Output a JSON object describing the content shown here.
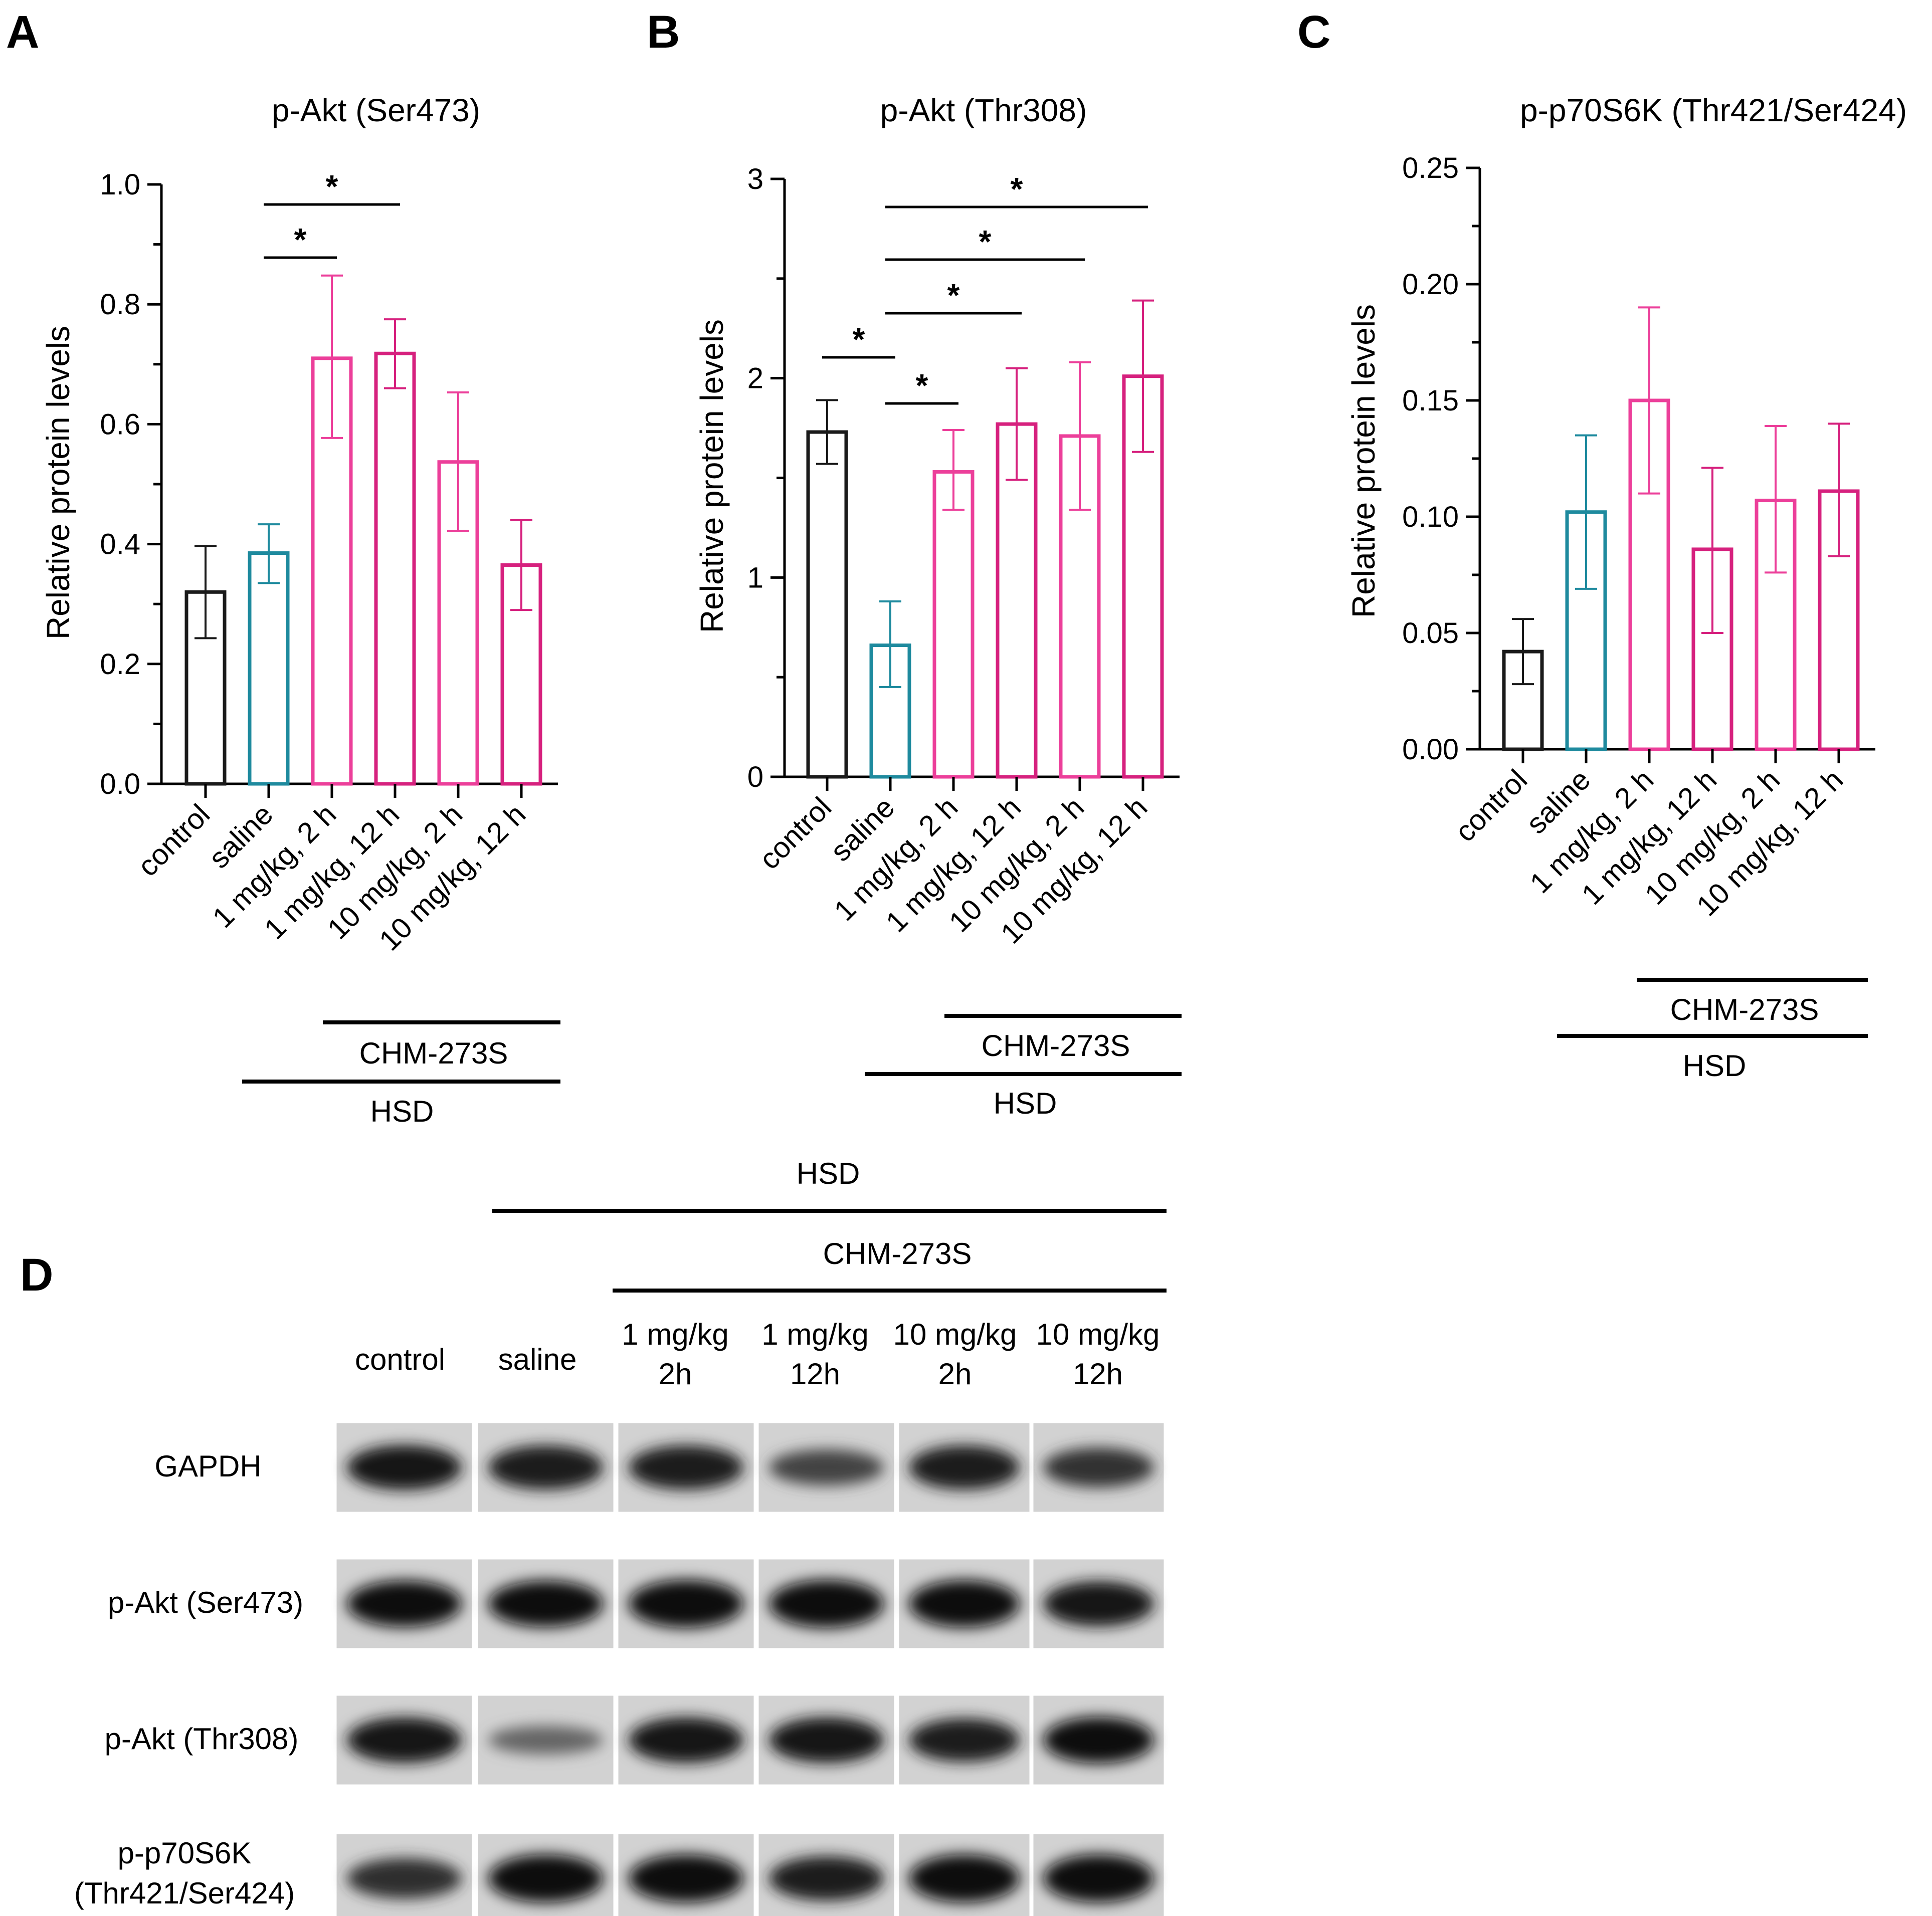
{
  "panels": [
    "A",
    "B",
    "C",
    "D"
  ],
  "colors": {
    "control": "#1a1a1a",
    "saline": "#1e8a9e",
    "pink_light": "#ec3f9a",
    "pink_dark": "#d6217e",
    "axis": "#000000"
  },
  "chart_data": [
    {
      "type": "bar",
      "panel": "A",
      "title": "p-Akt (Ser473)",
      "ylabel": "Relative protein levels",
      "ylim": [
        0,
        1.0
      ],
      "yticks": [
        "0.0",
        "0.2",
        "0.4",
        "0.6",
        "0.8",
        "1.0"
      ],
      "categories": [
        "control",
        "saline",
        "1 mg/kg, 2 h",
        "1 mg/kg, 12 h",
        "10 mg/kg, 2 h",
        "10 mg/kg, 12 h"
      ],
      "values": [
        0.32,
        0.385,
        0.71,
        0.718,
        0.537,
        0.365
      ],
      "error": [
        [
          0.243,
          0.397
        ],
        [
          0.335,
          0.433
        ],
        [
          0.577,
          0.848
        ],
        [
          0.66,
          0.775
        ],
        [
          0.422,
          0.653
        ],
        [
          0.29,
          0.44
        ]
      ],
      "significance": [
        {
          "from": 1,
          "to": 2,
          "label": "*"
        },
        {
          "from": 1,
          "to": 3,
          "label": "*"
        }
      ],
      "groups": {
        "chm": "CHM-273S",
        "hsd": "HSD"
      }
    },
    {
      "type": "bar",
      "panel": "B",
      "title": "p-Akt (Thr308)",
      "ylabel": "Relative protein levels",
      "ylim": [
        0,
        3
      ],
      "yticks": [
        "0",
        "1",
        "2",
        "3"
      ],
      "categories": [
        "control",
        "saline",
        "1 mg/kg, 2 h",
        "1 mg/kg, 12 h",
        "10 mg/kg, 2 h",
        "10 mg/kg, 12 h"
      ],
      "values": [
        1.73,
        0.66,
        1.53,
        1.77,
        1.71,
        2.01
      ],
      "error": [
        [
          1.57,
          1.89
        ],
        [
          0.45,
          0.88
        ],
        [
          1.34,
          1.74
        ],
        [
          1.49,
          2.05
        ],
        [
          1.34,
          2.08
        ],
        [
          1.63,
          2.39
        ]
      ],
      "significance": [
        {
          "from": 0,
          "to": 1,
          "label": "*"
        },
        {
          "from": 1,
          "to": 2,
          "label": "*"
        },
        {
          "from": 1,
          "to": 3,
          "label": "*"
        },
        {
          "from": 1,
          "to": 4,
          "label": "*"
        },
        {
          "from": 1,
          "to": 5,
          "label": "*"
        }
      ],
      "groups": {
        "chm": "CHM-273S",
        "hsd": "HSD"
      }
    },
    {
      "type": "bar",
      "panel": "C",
      "title": "p-p70S6K (Thr421/Ser424)",
      "ylabel": "Relative protein levels",
      "ylim": [
        0,
        0.25
      ],
      "yticks": [
        "0.00",
        "0.05",
        "0.10",
        "0.15",
        "0.20",
        "0.25"
      ],
      "categories": [
        "control",
        "saline",
        "1 mg/kg, 2 h",
        "1 mg/kg, 12 h",
        "10 mg/kg, 2 h",
        "10 mg/kg, 12 h"
      ],
      "values": [
        0.042,
        0.102,
        0.15,
        0.086,
        0.107,
        0.111
      ],
      "error": [
        [
          0.028,
          0.056
        ],
        [
          0.069,
          0.135
        ],
        [
          0.11,
          0.19
        ],
        [
          0.05,
          0.121
        ],
        [
          0.076,
          0.139
        ],
        [
          0.083,
          0.14
        ]
      ],
      "significance": [],
      "groups": {
        "chm": "CHM-273S",
        "hsd": "HSD"
      }
    }
  ],
  "blot": {
    "hsd": "HSD",
    "chm": "CHM-273S",
    "lanes": [
      {
        "line1": "control",
        "line2": ""
      },
      {
        "line1": "saline",
        "line2": ""
      },
      {
        "line1": "1 mg/kg",
        "line2": "2h"
      },
      {
        "line1": "1 mg/kg",
        "line2": "12h"
      },
      {
        "line1": "10 mg/kg",
        "line2": "2h"
      },
      {
        "line1": "10 mg/kg",
        "line2": "12h"
      }
    ],
    "rows": [
      {
        "label1": "GAPDH",
        "label2": "",
        "intensity": [
          0.9,
          0.88,
          0.88,
          0.6,
          0.88,
          0.72
        ]
      },
      {
        "label1": "p-Akt (Ser473)",
        "label2": "",
        "intensity": [
          0.95,
          0.95,
          1.0,
          1.0,
          0.98,
          0.9
        ]
      },
      {
        "label1": "p-Akt (Thr308)",
        "label2": "",
        "intensity": [
          0.92,
          0.35,
          0.92,
          0.92,
          0.85,
          0.95
        ]
      },
      {
        "label1": "p-p70S6K",
        "label2": "(Thr421/Ser424)",
        "intensity": [
          0.75,
          1.0,
          1.0,
          0.88,
          1.0,
          1.0
        ]
      }
    ]
  }
}
